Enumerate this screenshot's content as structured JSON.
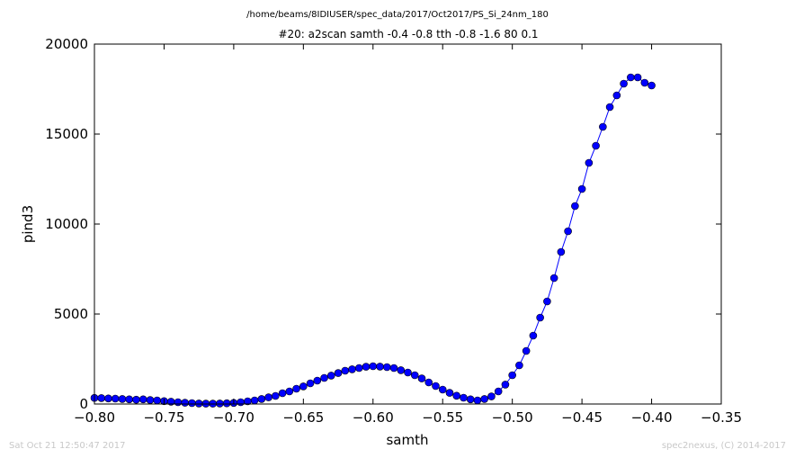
{
  "figure": {
    "suptitle": "/home/beams/8IDIUSER/spec_data/2017/Oct2017/PS_Si_24nm_180",
    "footer_left": "Sat Oct 21 12:50:47 2017",
    "footer_right": "spec2nexus, (C) 2014-2017"
  },
  "chart_data": {
    "type": "line",
    "title": "#20: a2scan  samth -0.4 -0.8  tth -0.8 -1.6  80 0.1",
    "xlabel": "samth",
    "ylabel": "pind3",
    "xlim": [
      -0.8,
      -0.35
    ],
    "ylim": [
      0,
      20000
    ],
    "xticks": [
      -0.8,
      -0.75,
      -0.7,
      -0.65,
      -0.6,
      -0.55,
      -0.5,
      -0.45,
      -0.4,
      -0.35
    ],
    "xtick_labels": [
      "−0.80",
      "−0.75",
      "−0.70",
      "−0.65",
      "−0.60",
      "−0.55",
      "−0.50",
      "−0.45",
      "−0.40",
      "−0.35"
    ],
    "yticks": [
      0,
      5000,
      10000,
      15000,
      20000
    ],
    "ytick_labels": [
      "0",
      "5000",
      "10000",
      "15000",
      "20000"
    ],
    "grid": false,
    "series": [
      {
        "color": "#0000ff",
        "marker": "circle",
        "points": [
          [
            -0.8,
            340
          ],
          [
            -0.795,
            330
          ],
          [
            -0.79,
            310
          ],
          [
            -0.785,
            300
          ],
          [
            -0.78,
            280
          ],
          [
            -0.775,
            260
          ],
          [
            -0.77,
            240
          ],
          [
            -0.765,
            260
          ],
          [
            -0.76,
            220
          ],
          [
            -0.755,
            200
          ],
          [
            -0.75,
            160
          ],
          [
            -0.745,
            130
          ],
          [
            -0.74,
            100
          ],
          [
            -0.735,
            70
          ],
          [
            -0.73,
            50
          ],
          [
            -0.725,
            30
          ],
          [
            -0.72,
            20
          ],
          [
            -0.715,
            20
          ],
          [
            -0.71,
            30
          ],
          [
            -0.705,
            40
          ],
          [
            -0.7,
            60
          ],
          [
            -0.695,
            100
          ],
          [
            -0.69,
            150
          ],
          [
            -0.685,
            200
          ],
          [
            -0.68,
            280
          ],
          [
            -0.675,
            370
          ],
          [
            -0.67,
            450
          ],
          [
            -0.665,
            600
          ],
          [
            -0.66,
            700
          ],
          [
            -0.655,
            850
          ],
          [
            -0.65,
            980
          ],
          [
            -0.645,
            1150
          ],
          [
            -0.64,
            1300
          ],
          [
            -0.635,
            1450
          ],
          [
            -0.63,
            1580
          ],
          [
            -0.625,
            1720
          ],
          [
            -0.62,
            1850
          ],
          [
            -0.615,
            1930
          ],
          [
            -0.61,
            2000
          ],
          [
            -0.605,
            2070
          ],
          [
            -0.6,
            2100
          ],
          [
            -0.595,
            2080
          ],
          [
            -0.59,
            2050
          ],
          [
            -0.585,
            2000
          ],
          [
            -0.58,
            1880
          ],
          [
            -0.575,
            1750
          ],
          [
            -0.57,
            1600
          ],
          [
            -0.565,
            1420
          ],
          [
            -0.56,
            1200
          ],
          [
            -0.555,
            1000
          ],
          [
            -0.55,
            800
          ],
          [
            -0.545,
            620
          ],
          [
            -0.54,
            460
          ],
          [
            -0.535,
            350
          ],
          [
            -0.53,
            260
          ],
          [
            -0.525,
            200
          ],
          [
            -0.52,
            280
          ],
          [
            -0.515,
            420
          ],
          [
            -0.51,
            700
          ],
          [
            -0.505,
            1080
          ],
          [
            -0.5,
            1600
          ],
          [
            -0.495,
            2150
          ],
          [
            -0.49,
            2950
          ],
          [
            -0.485,
            3800
          ],
          [
            -0.48,
            4800
          ],
          [
            -0.475,
            5700
          ],
          [
            -0.47,
            7000
          ],
          [
            -0.465,
            8450
          ],
          [
            -0.46,
            9600
          ],
          [
            -0.455,
            11000
          ],
          [
            -0.45,
            11950
          ],
          [
            -0.445,
            13400
          ],
          [
            -0.44,
            14350
          ],
          [
            -0.435,
            15400
          ],
          [
            -0.43,
            16500
          ],
          [
            -0.425,
            17150
          ],
          [
            -0.42,
            17800
          ],
          [
            -0.415,
            18150
          ],
          [
            -0.41,
            18150
          ],
          [
            -0.405,
            17850
          ],
          [
            -0.4,
            17700
          ]
        ]
      }
    ]
  }
}
